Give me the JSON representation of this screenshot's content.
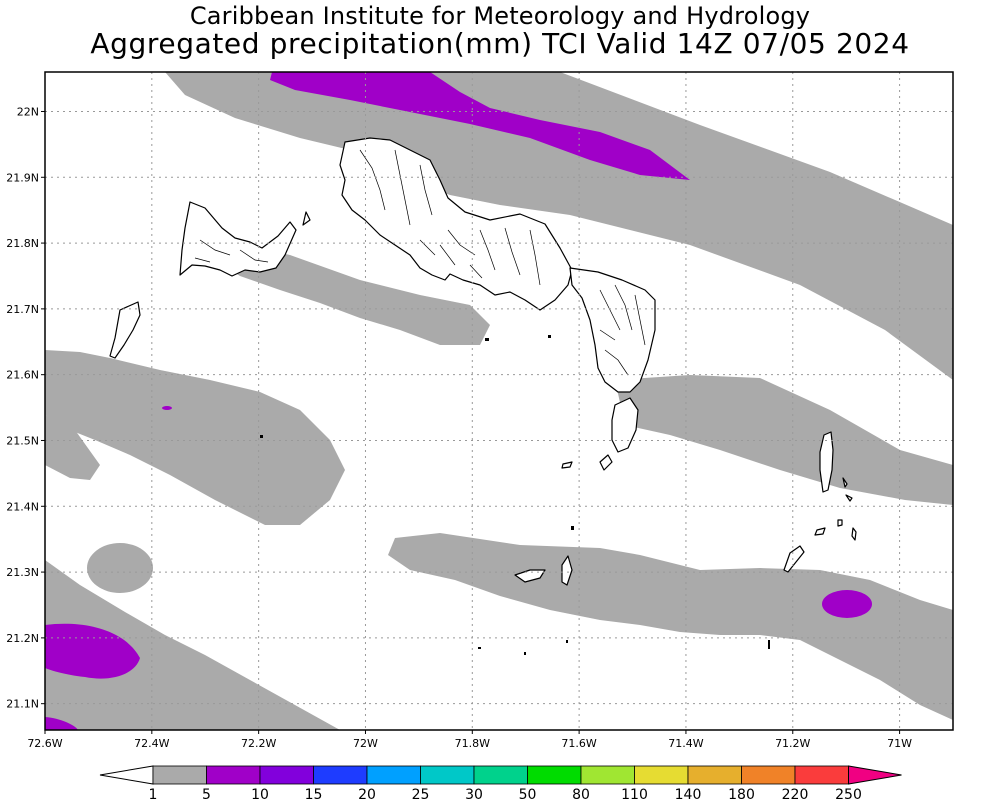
{
  "header": {
    "line1": "Caribbean Institute for Meteorology and Hydrology",
    "line2": "Aggregated precipitation(mm) TCI Valid 14Z 07/05 2024"
  },
  "map": {
    "lon_range": [
      -72.6,
      -70.9
    ],
    "lat_range": [
      21.06,
      22.06
    ],
    "lon_ticks": [
      {
        "value": -72.6,
        "label": "72.6W"
      },
      {
        "value": -72.4,
        "label": "72.4W"
      },
      {
        "value": -72.2,
        "label": "72.2W"
      },
      {
        "value": -72.0,
        "label": "72W"
      },
      {
        "value": -71.8,
        "label": "71.8W"
      },
      {
        "value": -71.6,
        "label": "71.6W"
      },
      {
        "value": -71.4,
        "label": "71.4W"
      },
      {
        "value": -71.2,
        "label": "71.2W"
      },
      {
        "value": -71.0,
        "label": "71W"
      }
    ],
    "lat_ticks": [
      {
        "value": 22.0,
        "label": "22N"
      },
      {
        "value": 21.9,
        "label": "21.9N"
      },
      {
        "value": 21.8,
        "label": "21.8N"
      },
      {
        "value": 21.7,
        "label": "21.7N"
      },
      {
        "value": 21.6,
        "label": "21.6N"
      },
      {
        "value": 21.5,
        "label": "21.5N"
      },
      {
        "value": 21.4,
        "label": "21.4N"
      },
      {
        "value": 21.3,
        "label": "21.3N"
      },
      {
        "value": 21.2,
        "label": "21.2N"
      },
      {
        "value": 21.1,
        "label": "21.1N"
      }
    ],
    "grid": true,
    "colors": {
      "light": "#aaaaaa",
      "moderate": "#a000c8",
      "coast": "#000000"
    }
  },
  "colorbar": {
    "unit": "mm",
    "levels": [
      "1",
      "5",
      "10",
      "15",
      "20",
      "25",
      "30",
      "50",
      "80",
      "110",
      "140",
      "180",
      "220",
      "250"
    ],
    "colors": [
      "#aaaaaa",
      "#a000c8",
      "#8200dc",
      "#1e3cff",
      "#00a0ff",
      "#00c8c8",
      "#00d28c",
      "#00dc00",
      "#a0e632",
      "#e6dc32",
      "#e6af2d",
      "#f08228",
      "#fa3c3c",
      "#f00082"
    ]
  }
}
